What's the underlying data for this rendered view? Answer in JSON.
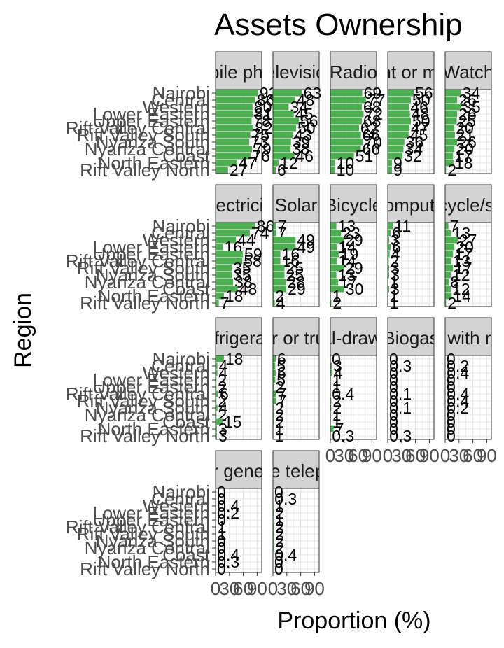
{
  "chart_data": {
    "type": "bar",
    "orientation": "horizontal",
    "faceted": true,
    "title": "Assets Ownership",
    "xlabel": "Proportion (%)",
    "ylabel": "Region",
    "xlim": [
      0,
      100
    ],
    "x_tick_labels": [
      "0",
      "30",
      "60",
      "90"
    ],
    "bar_color": "#4CAF50",
    "grid": true,
    "categories": [
      "Nairobi",
      "Central",
      "Western",
      "Lower Eastern",
      "Upper Eastern",
      "Rift Valley Central",
      "Rift Valley South",
      "Nyanza South",
      "Nyanza Central",
      "Coast",
      "North Eastern",
      "Rift Valley North"
    ],
    "facets": [
      {
        "label": "Mobile phone",
        "values": [
          92,
          86,
          80,
          81,
          78,
          82,
          75,
          73,
          79,
          76,
          47,
          27
        ]
      },
      {
        "label": "Television",
        "values": [
          63,
          48,
          34,
          45,
          56,
          50,
          43,
          39,
          38,
          46,
          12,
          6
        ]
      },
      {
        "label": "Radio",
        "values": [
          69,
          77,
          68,
          72,
          68,
          62,
          66,
          70,
          66,
          51,
          10,
          10
        ]
      },
      {
        "label": "Bank account or mobile money",
        "values": [
          56,
          50,
          46,
          48,
          50,
          47,
          45,
          36,
          34,
          32,
          9,
          9
        ]
      },
      {
        "label": "Watch",
        "values": [
          34,
          26,
          35,
          26,
          25,
          20,
          21,
          26,
          20,
          17,
          18,
          2
        ]
      },
      {
        "label": "Electricity",
        "values": [
          86,
          74,
          44,
          16,
          59,
          58,
          35,
          35,
          38,
          48,
          18,
          7
        ]
      },
      {
        "label": "Solar",
        "values": [
          7,
          7,
          49,
          49,
          16,
          16,
          25,
          25,
          28,
          29,
          2,
          4
        ]
      },
      {
        "label": "Bicycle",
        "values": [
          13,
          23,
          29,
          14,
          19,
          14,
          29,
          13,
          17,
          30,
          1,
          2
        ]
      },
      {
        "label": "Computer",
        "values": [
          11,
          6,
          3,
          6,
          4,
          2,
          3,
          3,
          1,
          3,
          1,
          1
        ]
      },
      {
        "label": "Motorcycle/scooter",
        "values": [
          7,
          13,
          27,
          20,
          17,
          13,
          17,
          12,
          8,
          12,
          14,
          2
        ]
      },
      {
        "label": "Refrigerator",
        "values": [
          18,
          4,
          4,
          2,
          2,
          6,
          2,
          4,
          2,
          15,
          3,
          3
        ]
      },
      {
        "label": "Car or truck",
        "values": [
          6,
          5,
          6,
          5,
          2,
          7,
          7,
          2,
          2,
          2,
          1,
          1
        ]
      },
      {
        "label": "Animal-drawn cart",
        "values": [
          0,
          3,
          4,
          1,
          1,
          0.4,
          2,
          2,
          1,
          1,
          7,
          0.3
        ]
      },
      {
        "label": "Biogas",
        "values": [
          0,
          0.3,
          0,
          0,
          0,
          0.1,
          0,
          0.1,
          0,
          0,
          0,
          0.3
        ]
      },
      {
        "label": "Boat with motor",
        "values": [
          0,
          0.2,
          0.4,
          0,
          0,
          0.4,
          0.4,
          0.2,
          0,
          0,
          0,
          0
        ]
      },
      {
        "label": "Solar generator",
        "values": [
          0,
          0,
          0.4,
          0.2,
          0,
          1,
          1,
          0,
          0,
          0.4,
          0.3,
          0
        ]
      },
      {
        "label": "Mobile telephone",
        "values": [
          0,
          0.3,
          1,
          2,
          1,
          2,
          2,
          2,
          2,
          0.4,
          0,
          0
        ]
      }
    ]
  }
}
